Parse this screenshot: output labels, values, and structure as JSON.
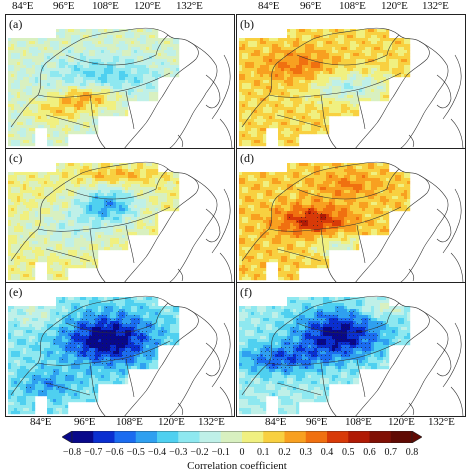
{
  "top_lon_labels": [
    "84°E",
    "96°E",
    "108°E",
    "120°E",
    "132°E"
  ],
  "bottom_lon_labels": [
    "84°E",
    "96°E",
    "108°E",
    "120°E",
    "132°E"
  ],
  "panels": [
    {
      "label": "(a)",
      "pattern": "a"
    },
    {
      "label": "(b)",
      "pattern": "b"
    },
    {
      "label": "(c)",
      "pattern": "c"
    },
    {
      "label": "(d)",
      "pattern": "d"
    },
    {
      "label": "(e)",
      "pattern": "e"
    },
    {
      "label": "(f)",
      "pattern": "f"
    }
  ],
  "colorbar": {
    "title": "Correlation coefficient",
    "ticks": [
      "−0.8",
      "−0.7",
      "−0.6",
      "−0.5",
      "−0.4",
      "−0.3",
      "−0.2",
      "−0.1",
      "0",
      "0.1",
      "0.2",
      "0.3",
      "0.4",
      "0.5",
      "0.6",
      "0.7",
      "0.8"
    ],
    "min": -0.8,
    "max": 0.8,
    "colors": [
      "#08088a",
      "#0a2fd0",
      "#1b6cf0",
      "#2fa0f0",
      "#4fd0f0",
      "#8ee8f0",
      "#bff0e8",
      "#d8f0c0",
      "#f0f080",
      "#f8d040",
      "#f8a020",
      "#f07010",
      "#d83a08",
      "#b01a05",
      "#801005",
      "#600a03"
    ]
  }
}
